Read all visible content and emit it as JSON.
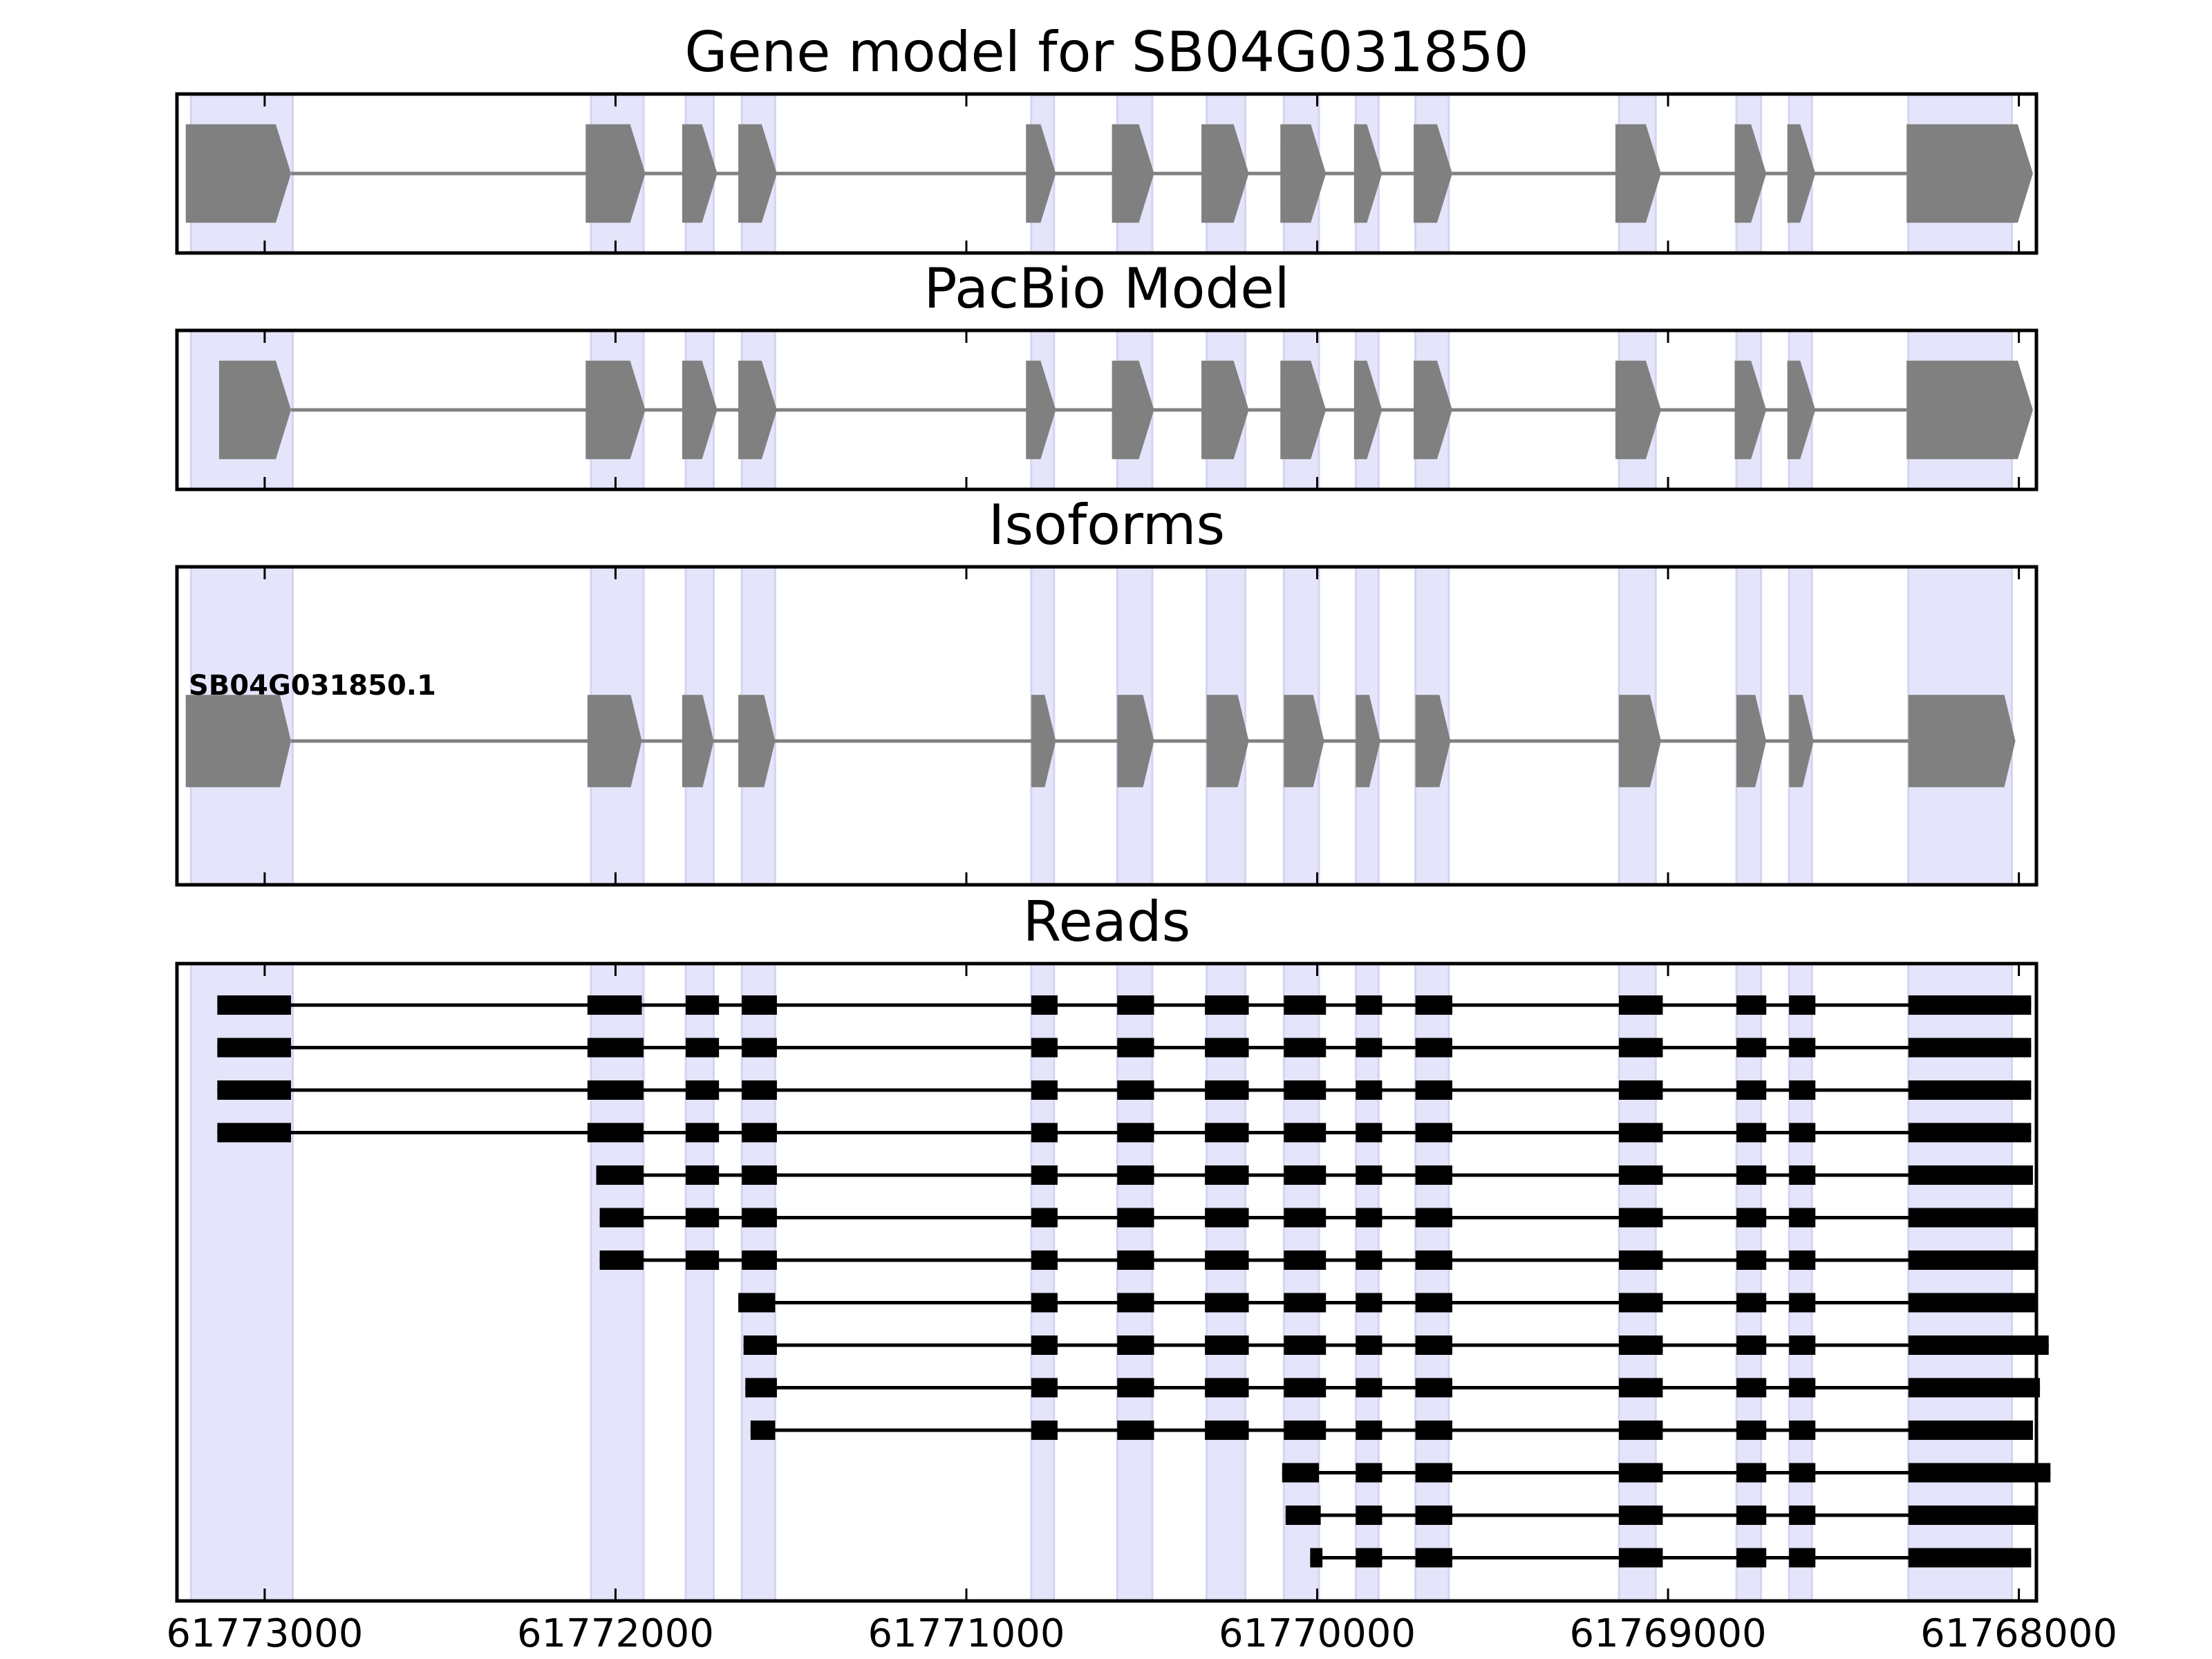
{
  "chart_data": {
    "type": "gene-structure",
    "x_axis": {
      "range": [
        61773250,
        61767950
      ],
      "reversed": true,
      "ticks": [
        61773000,
        61772000,
        61771000,
        61770000,
        61769000,
        61768000
      ],
      "tick_labels": [
        "61773000",
        "61772000",
        "61771000",
        "61770000",
        "61769000",
        "61768000"
      ]
    },
    "exon_regions": [
      [
        61773210,
        61772920
      ],
      [
        61772070,
        61771920
      ],
      [
        61771800,
        61771720
      ],
      [
        61771640,
        61771545
      ],
      [
        61770815,
        61770750
      ],
      [
        61770570,
        61770470
      ],
      [
        61770315,
        61770205
      ],
      [
        61770095,
        61769995
      ],
      [
        61769890,
        61769825
      ],
      [
        61769720,
        61769625
      ],
      [
        61769140,
        61769035
      ],
      [
        61768805,
        61768735
      ],
      [
        61768655,
        61768590
      ],
      [
        61768315,
        61768020
      ]
    ],
    "panels": [
      {
        "title": "Gene model for SB04G031850",
        "color": "#808080",
        "height_factor": 0.62,
        "exons": [
          [
            61773225,
            61772925
          ],
          [
            61772085,
            61771915
          ],
          [
            61771810,
            61771710
          ],
          [
            61771650,
            61771540
          ],
          [
            61770830,
            61770745
          ],
          [
            61770585,
            61770465
          ],
          [
            61770330,
            61770195
          ],
          [
            61770105,
            61769975
          ],
          [
            61769895,
            61769815
          ],
          [
            61769725,
            61769615
          ],
          [
            61769150,
            61769020
          ],
          [
            61768810,
            61768720
          ],
          [
            61768660,
            61768580
          ],
          [
            61768320,
            61767960
          ]
        ]
      },
      {
        "title": "PacBio Model",
        "color": "#808080",
        "height_factor": 0.62,
        "exons": [
          [
            61773130,
            61772925
          ],
          [
            61772085,
            61771915
          ],
          [
            61771810,
            61771710
          ],
          [
            61771650,
            61771540
          ],
          [
            61770830,
            61770745
          ],
          [
            61770585,
            61770465
          ],
          [
            61770330,
            61770195
          ],
          [
            61770105,
            61769975
          ],
          [
            61769895,
            61769815
          ],
          [
            61769725,
            61769615
          ],
          [
            61769150,
            61769020
          ],
          [
            61768810,
            61768720
          ],
          [
            61768660,
            61768580
          ],
          [
            61768320,
            61767960
          ]
        ]
      },
      {
        "title": "Isoforms",
        "color": "#808080",
        "height_factor": 0.29,
        "label": "SB04G031850.1",
        "exons": [
          [
            61773225,
            61772925
          ],
          [
            61772080,
            61771925
          ],
          [
            61771810,
            61771720
          ],
          [
            61771650,
            61771545
          ],
          [
            61770815,
            61770745
          ],
          [
            61770570,
            61770465
          ],
          [
            61770315,
            61770195
          ],
          [
            61770095,
            61769980
          ],
          [
            61769890,
            61769820
          ],
          [
            61769720,
            61769620
          ],
          [
            61769140,
            61769020
          ],
          [
            61768805,
            61768720
          ],
          [
            61768655,
            61768585
          ],
          [
            61768315,
            61768010
          ]
        ]
      },
      {
        "title": "Reads",
        "color": "#000000",
        "reads": [
          [
            [
              61773135,
              61772925
            ],
            [
              61772080,
              61771925
            ],
            [
              61771800,
              61771705
            ],
            [
              61771640,
              61771540
            ],
            [
              61770815,
              61770740
            ],
            [
              61770570,
              61770465
            ],
            [
              61770320,
              61770195
            ],
            [
              61770095,
              61769975
            ],
            [
              61769890,
              61769815
            ],
            [
              61769720,
              61769615
            ],
            [
              61769140,
              61769015
            ],
            [
              61768805,
              61768720
            ],
            [
              61768655,
              61768580
            ],
            [
              61768315,
              61767965
            ]
          ],
          [
            [
              61773135,
              61772925
            ],
            [
              61772080,
              61771920
            ],
            [
              61771800,
              61771705
            ],
            [
              61771640,
              61771540
            ],
            [
              61770815,
              61770740
            ],
            [
              61770570,
              61770465
            ],
            [
              61770320,
              61770195
            ],
            [
              61770095,
              61769975
            ],
            [
              61769890,
              61769815
            ],
            [
              61769720,
              61769615
            ],
            [
              61769140,
              61769015
            ],
            [
              61768805,
              61768720
            ],
            [
              61768655,
              61768580
            ],
            [
              61768315,
              61767965
            ]
          ],
          [
            [
              61773135,
              61772925
            ],
            [
              61772080,
              61771920
            ],
            [
              61771800,
              61771705
            ],
            [
              61771640,
              61771540
            ],
            [
              61770815,
              61770740
            ],
            [
              61770570,
              61770465
            ],
            [
              61770320,
              61770195
            ],
            [
              61770095,
              61769975
            ],
            [
              61769890,
              61769815
            ],
            [
              61769720,
              61769615
            ],
            [
              61769140,
              61769015
            ],
            [
              61768805,
              61768720
            ],
            [
              61768655,
              61768580
            ],
            [
              61768315,
              61767965
            ]
          ],
          [
            [
              61773135,
              61772925
            ],
            [
              61772080,
              61771920
            ],
            [
              61771800,
              61771705
            ],
            [
              61771640,
              61771540
            ],
            [
              61770815,
              61770740
            ],
            [
              61770570,
              61770465
            ],
            [
              61770320,
              61770195
            ],
            [
              61770095,
              61769975
            ],
            [
              61769890,
              61769815
            ],
            [
              61769720,
              61769615
            ],
            [
              61769140,
              61769015
            ],
            [
              61768805,
              61768720
            ],
            [
              61768655,
              61768580
            ],
            [
              61768315,
              61767965
            ]
          ],
          [
            [
              61772055,
              61771920
            ],
            [
              61771800,
              61771705
            ],
            [
              61771640,
              61771540
            ],
            [
              61770815,
              61770740
            ],
            [
              61770570,
              61770465
            ],
            [
              61770320,
              61770195
            ],
            [
              61770095,
              61769975
            ],
            [
              61769890,
              61769815
            ],
            [
              61769720,
              61769615
            ],
            [
              61769140,
              61769015
            ],
            [
              61768805,
              61768720
            ],
            [
              61768655,
              61768580
            ],
            [
              61768315,
              61767960
            ]
          ],
          [
            [
              61772045,
              61771920
            ],
            [
              61771800,
              61771705
            ],
            [
              61771640,
              61771540
            ],
            [
              61770815,
              61770740
            ],
            [
              61770570,
              61770465
            ],
            [
              61770320,
              61770195
            ],
            [
              61770095,
              61769975
            ],
            [
              61769890,
              61769815
            ],
            [
              61769720,
              61769615
            ],
            [
              61769140,
              61769015
            ],
            [
              61768805,
              61768720
            ],
            [
              61768655,
              61768580
            ],
            [
              61768315,
              61767950
            ]
          ],
          [
            [
              61772045,
              61771920
            ],
            [
              61771800,
              61771705
            ],
            [
              61771640,
              61771540
            ],
            [
              61770815,
              61770740
            ],
            [
              61770570,
              61770465
            ],
            [
              61770320,
              61770195
            ],
            [
              61770095,
              61769975
            ],
            [
              61769890,
              61769815
            ],
            [
              61769720,
              61769615
            ],
            [
              61769140,
              61769015
            ],
            [
              61768805,
              61768720
            ],
            [
              61768655,
              61768580
            ],
            [
              61768315,
              61767945
            ]
          ],
          [
            [
              61771650,
              61771545
            ],
            [
              61770815,
              61770740
            ],
            [
              61770570,
              61770465
            ],
            [
              61770320,
              61770195
            ],
            [
              61770095,
              61769975
            ],
            [
              61769890,
              61769815
            ],
            [
              61769720,
              61769615
            ],
            [
              61769140,
              61769015
            ],
            [
              61768805,
              61768720
            ],
            [
              61768655,
              61768580
            ],
            [
              61768315,
              61767955
            ]
          ],
          [
            [
              61771635,
              61771540
            ],
            [
              61770815,
              61770740
            ],
            [
              61770570,
              61770465
            ],
            [
              61770320,
              61770195
            ],
            [
              61770095,
              61769975
            ],
            [
              61769890,
              61769815
            ],
            [
              61769720,
              61769615
            ],
            [
              61769140,
              61769015
            ],
            [
              61768805,
              61768720
            ],
            [
              61768655,
              61768580
            ],
            [
              61768315,
              61767915
            ]
          ],
          [
            [
              61771630,
              61771540
            ],
            [
              61770815,
              61770740
            ],
            [
              61770570,
              61770465
            ],
            [
              61770320,
              61770195
            ],
            [
              61770095,
              61769975
            ],
            [
              61769890,
              61769815
            ],
            [
              61769720,
              61769615
            ],
            [
              61769140,
              61769015
            ],
            [
              61768805,
              61768720
            ],
            [
              61768655,
              61768580
            ],
            [
              61768315,
              61767940
            ]
          ],
          [
            [
              61771615,
              61771545
            ],
            [
              61770815,
              61770740
            ],
            [
              61770570,
              61770465
            ],
            [
              61770320,
              61770195
            ],
            [
              61770095,
              61769975
            ],
            [
              61769890,
              61769815
            ],
            [
              61769720,
              61769615
            ],
            [
              61769140,
              61769015
            ],
            [
              61768805,
              61768720
            ],
            [
              61768655,
              61768580
            ],
            [
              61768315,
              61767960
            ]
          ],
          [
            [
              61770100,
              61769995
            ],
            [
              61769890,
              61769815
            ],
            [
              61769720,
              61769615
            ],
            [
              61769140,
              61769015
            ],
            [
              61768805,
              61768720
            ],
            [
              61768655,
              61768580
            ],
            [
              61768315,
              61767910
            ]
          ],
          [
            [
              61770090,
              61769990
            ],
            [
              61769890,
              61769815
            ],
            [
              61769720,
              61769615
            ],
            [
              61769140,
              61769015
            ],
            [
              61768805,
              61768720
            ],
            [
              61768655,
              61768580
            ],
            [
              61768315,
              61767955
            ]
          ],
          [
            [
              61770020,
              61769985
            ],
            [
              61769890,
              61769815
            ],
            [
              61769720,
              61769615
            ],
            [
              61769140,
              61769015
            ],
            [
              61768805,
              61768720
            ],
            [
              61768655,
              61768580
            ],
            [
              61768315,
              61767965
            ]
          ]
        ]
      }
    ]
  }
}
